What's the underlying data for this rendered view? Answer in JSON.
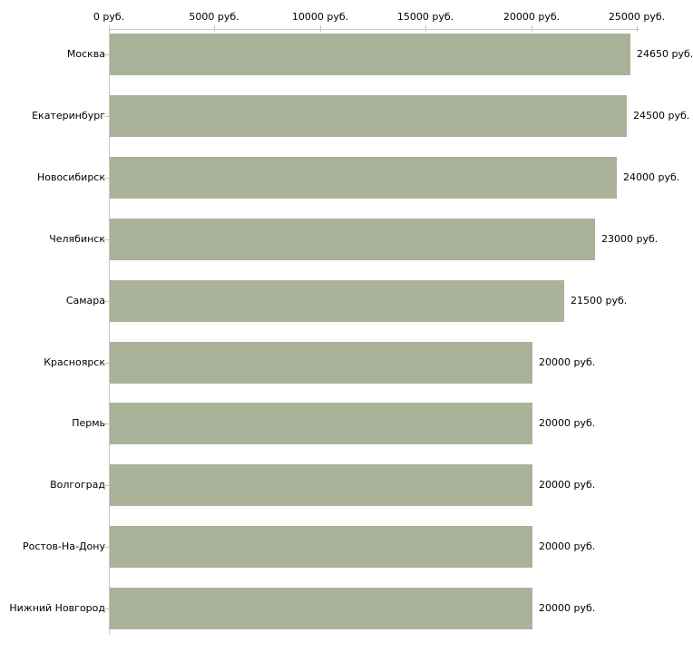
{
  "chart_data": {
    "type": "bar",
    "orientation": "horizontal",
    "title": "",
    "xlabel": "",
    "ylabel": "",
    "unit": "руб.",
    "categories": [
      "Москва",
      "Екатеринбург",
      "Новосибирск",
      "Челябинск",
      "Самара",
      "Красноярск",
      "Пермь",
      "Волгоград",
      "Ростов-На-Дону",
      "Нижний Новгород"
    ],
    "values": [
      24650,
      24500,
      24000,
      23000,
      21500,
      20000,
      20000,
      20000,
      20000,
      20000
    ],
    "value_labels": [
      "24650 руб.",
      "24500 руб.",
      "24000 руб.",
      "23000 руб.",
      "21500 руб.",
      "20000 руб.",
      "20000 руб.",
      "20000 руб.",
      "20000 руб.",
      "20000 руб."
    ],
    "x_tick_labels": [
      "0 руб.",
      "5000 руб.",
      "10000 руб.",
      "15000 руб.",
      "20000 руб.",
      "25000 руб."
    ],
    "x_tick_values": [
      0,
      5000,
      10000,
      15000,
      20000,
      25000
    ],
    "xlim": [
      0,
      25000
    ],
    "grid": "off",
    "legend": "none",
    "colors": {
      "bar": "#abb29a",
      "axis": "#c8c8c8",
      "tick": "#c8c8a2",
      "text": "#000000",
      "background": "#ffffff"
    }
  }
}
